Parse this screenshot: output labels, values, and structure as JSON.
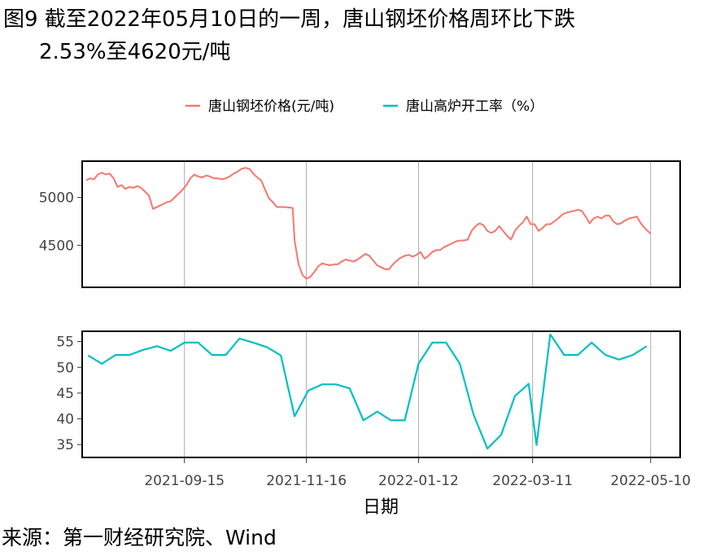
{
  "figure": {
    "title_line1": "图9  截至2022年05月10日的一周，唐山钢坯价格周环比下跌",
    "title_line2": "2.53%至4620元/吨",
    "source": "来源：第一财经研究院、Wind"
  },
  "chart_data": {
    "type": "line",
    "xlabel": "日期",
    "x_ticks": [
      "2021-09-15",
      "2021-11-16",
      "2022-01-12",
      "2022-03-11",
      "2022-05-10"
    ],
    "x_range": [
      "2021-07-25",
      "2022-05-25"
    ],
    "legend_position": "top",
    "grid": "vertical lines at x ticks",
    "panels": [
      {
        "series_name": "唐山钢坯价格(元/吨)",
        "color": "#F8766D",
        "ylim": [
          4060,
          5380
        ],
        "y_ticks": [
          4500,
          5000
        ],
        "points": [
          [
            "2021-07-27",
            5180
          ],
          [
            "2021-07-29",
            5200
          ],
          [
            "2021-07-31",
            5190
          ],
          [
            "2021-08-02",
            5240
          ],
          [
            "2021-08-04",
            5260
          ],
          [
            "2021-08-06",
            5240
          ],
          [
            "2021-08-08",
            5250
          ],
          [
            "2021-08-10",
            5200
          ],
          [
            "2021-08-12",
            5110
          ],
          [
            "2021-08-14",
            5130
          ],
          [
            "2021-08-16",
            5090
          ],
          [
            "2021-08-18",
            5110
          ],
          [
            "2021-08-20",
            5100
          ],
          [
            "2021-08-22",
            5120
          ],
          [
            "2021-08-24",
            5100
          ],
          [
            "2021-08-26",
            5060
          ],
          [
            "2021-08-28",
            5020
          ],
          [
            "2021-08-30",
            4880
          ],
          [
            "2021-09-02",
            4910
          ],
          [
            "2021-09-04",
            4930
          ],
          [
            "2021-09-06",
            4950
          ],
          [
            "2021-09-08",
            4960
          ],
          [
            "2021-09-10",
            5000
          ],
          [
            "2021-09-12",
            5040
          ],
          [
            "2021-09-14",
            5080
          ],
          [
            "2021-09-16",
            5130
          ],
          [
            "2021-09-18",
            5200
          ],
          [
            "2021-09-20",
            5240
          ],
          [
            "2021-09-22",
            5220
          ],
          [
            "2021-09-24",
            5210
          ],
          [
            "2021-09-26",
            5230
          ],
          [
            "2021-09-28",
            5220
          ],
          [
            "2021-09-30",
            5200
          ],
          [
            "2021-10-02",
            5200
          ],
          [
            "2021-10-04",
            5190
          ],
          [
            "2021-10-06",
            5200
          ],
          [
            "2021-10-08",
            5220
          ],
          [
            "2021-10-10",
            5250
          ],
          [
            "2021-10-12",
            5270
          ],
          [
            "2021-10-14",
            5300
          ],
          [
            "2021-10-16",
            5310
          ],
          [
            "2021-10-18",
            5300
          ],
          [
            "2021-10-20",
            5250
          ],
          [
            "2021-10-22",
            5210
          ],
          [
            "2021-10-24",
            5180
          ],
          [
            "2021-10-26",
            5080
          ],
          [
            "2021-10-28",
            4990
          ],
          [
            "2021-10-30",
            4950
          ],
          [
            "2021-11-01",
            4900
          ],
          [
            "2021-11-05",
            4900
          ],
          [
            "2021-11-09",
            4890
          ],
          [
            "2021-11-10",
            4550
          ],
          [
            "2021-11-12",
            4300
          ],
          [
            "2021-11-14",
            4190
          ],
          [
            "2021-11-16",
            4150
          ],
          [
            "2021-11-18",
            4170
          ],
          [
            "2021-11-20",
            4220
          ],
          [
            "2021-11-22",
            4280
          ],
          [
            "2021-11-24",
            4310
          ],
          [
            "2021-11-26",
            4300
          ],
          [
            "2021-11-28",
            4290
          ],
          [
            "2021-11-30",
            4300
          ],
          [
            "2021-12-02",
            4300
          ],
          [
            "2021-12-04",
            4330
          ],
          [
            "2021-12-06",
            4350
          ],
          [
            "2021-12-08",
            4340
          ],
          [
            "2021-12-10",
            4330
          ],
          [
            "2021-12-12",
            4350
          ],
          [
            "2021-12-14",
            4380
          ],
          [
            "2021-12-16",
            4410
          ],
          [
            "2021-12-18",
            4390
          ],
          [
            "2021-12-20",
            4340
          ],
          [
            "2021-12-22",
            4290
          ],
          [
            "2021-12-24",
            4270
          ],
          [
            "2021-12-26",
            4250
          ],
          [
            "2021-12-28",
            4250
          ],
          [
            "2021-12-30",
            4300
          ],
          [
            "2022-01-01",
            4340
          ],
          [
            "2022-01-03",
            4370
          ],
          [
            "2022-01-05",
            4390
          ],
          [
            "2022-01-07",
            4400
          ],
          [
            "2022-01-09",
            4380
          ],
          [
            "2022-01-11",
            4400
          ],
          [
            "2022-01-13",
            4430
          ],
          [
            "2022-01-15",
            4360
          ],
          [
            "2022-01-17",
            4390
          ],
          [
            "2022-01-19",
            4430
          ],
          [
            "2022-01-21",
            4450
          ],
          [
            "2022-01-23",
            4450
          ],
          [
            "2022-01-25",
            4480
          ],
          [
            "2022-01-27",
            4500
          ],
          [
            "2022-01-29",
            4520
          ],
          [
            "2022-01-31",
            4540
          ],
          [
            "2022-02-02",
            4550
          ],
          [
            "2022-02-04",
            4550
          ],
          [
            "2022-02-06",
            4560
          ],
          [
            "2022-02-08",
            4650
          ],
          [
            "2022-02-10",
            4700
          ],
          [
            "2022-02-12",
            4730
          ],
          [
            "2022-02-14",
            4710
          ],
          [
            "2022-02-16",
            4650
          ],
          [
            "2022-02-18",
            4630
          ],
          [
            "2022-02-20",
            4650
          ],
          [
            "2022-02-22",
            4700
          ],
          [
            "2022-02-24",
            4650
          ],
          [
            "2022-02-26",
            4600
          ],
          [
            "2022-02-28",
            4560
          ],
          [
            "2022-03-02",
            4650
          ],
          [
            "2022-03-04",
            4700
          ],
          [
            "2022-03-06",
            4740
          ],
          [
            "2022-03-08",
            4800
          ],
          [
            "2022-03-10",
            4720
          ],
          [
            "2022-03-12",
            4720
          ],
          [
            "2022-03-14",
            4650
          ],
          [
            "2022-03-16",
            4680
          ],
          [
            "2022-03-18",
            4720
          ],
          [
            "2022-03-20",
            4720
          ],
          [
            "2022-03-22",
            4750
          ],
          [
            "2022-03-24",
            4780
          ],
          [
            "2022-03-26",
            4820
          ],
          [
            "2022-03-28",
            4840
          ],
          [
            "2022-03-30",
            4850
          ],
          [
            "2022-04-01",
            4860
          ],
          [
            "2022-04-03",
            4870
          ],
          [
            "2022-04-05",
            4860
          ],
          [
            "2022-04-07",
            4800
          ],
          [
            "2022-04-09",
            4730
          ],
          [
            "2022-04-11",
            4780
          ],
          [
            "2022-04-13",
            4800
          ],
          [
            "2022-04-15",
            4780
          ],
          [
            "2022-04-17",
            4810
          ],
          [
            "2022-04-19",
            4810
          ],
          [
            "2022-04-21",
            4750
          ],
          [
            "2022-04-23",
            4720
          ],
          [
            "2022-04-25",
            4730
          ],
          [
            "2022-04-27",
            4760
          ],
          [
            "2022-04-29",
            4780
          ],
          [
            "2022-05-01",
            4790
          ],
          [
            "2022-05-03",
            4800
          ],
          [
            "2022-05-05",
            4730
          ],
          [
            "2022-05-07",
            4680
          ],
          [
            "2022-05-10",
            4620
          ]
        ]
      },
      {
        "series_name": "唐山高炉开工率（%）",
        "color": "#00BFC4",
        "ylim": [
          32.5,
          57.0
        ],
        "y_ticks": [
          35,
          40,
          45,
          50,
          55
        ],
        "points": [
          [
            "2021-07-28",
            52.3
          ],
          [
            "2021-08-04",
            50.7
          ],
          [
            "2021-08-11",
            52.4
          ],
          [
            "2021-08-18",
            52.4
          ],
          [
            "2021-08-25",
            53.4
          ],
          [
            "2021-09-01",
            54.1
          ],
          [
            "2021-09-08",
            53.2
          ],
          [
            "2021-09-15",
            54.8
          ],
          [
            "2021-09-22",
            54.8
          ],
          [
            "2021-09-29",
            52.4
          ],
          [
            "2021-10-06",
            52.4
          ],
          [
            "2021-10-13",
            55.6
          ],
          [
            "2021-10-20",
            54.8
          ],
          [
            "2021-10-27",
            53.9
          ],
          [
            "2021-11-03",
            52.3
          ],
          [
            "2021-11-10",
            40.5
          ],
          [
            "2021-11-17",
            45.5
          ],
          [
            "2021-11-24",
            46.7
          ],
          [
            "2021-12-01",
            46.7
          ],
          [
            "2021-12-08",
            45.9
          ],
          [
            "2021-12-15",
            39.7
          ],
          [
            "2021-12-22",
            41.4
          ],
          [
            "2021-12-29",
            39.7
          ],
          [
            "2022-01-05",
            39.7
          ],
          [
            "2022-01-12",
            50.7
          ],
          [
            "2022-01-19",
            54.8
          ],
          [
            "2022-01-26",
            54.8
          ],
          [
            "2022-02-02",
            50.7
          ],
          [
            "2022-02-09",
            40.8
          ],
          [
            "2022-02-16",
            34.2
          ],
          [
            "2022-02-23",
            36.9
          ],
          [
            "2022-03-02",
            44.4
          ],
          [
            "2022-03-09",
            46.8
          ],
          [
            "2022-03-13",
            34.9
          ],
          [
            "2022-03-20",
            56.4
          ],
          [
            "2022-03-27",
            52.4
          ],
          [
            "2022-04-03",
            52.4
          ],
          [
            "2022-04-10",
            54.8
          ],
          [
            "2022-04-17",
            52.4
          ],
          [
            "2022-04-24",
            51.5
          ],
          [
            "2022-05-01",
            52.4
          ],
          [
            "2022-05-08",
            54.1
          ]
        ]
      }
    ]
  }
}
